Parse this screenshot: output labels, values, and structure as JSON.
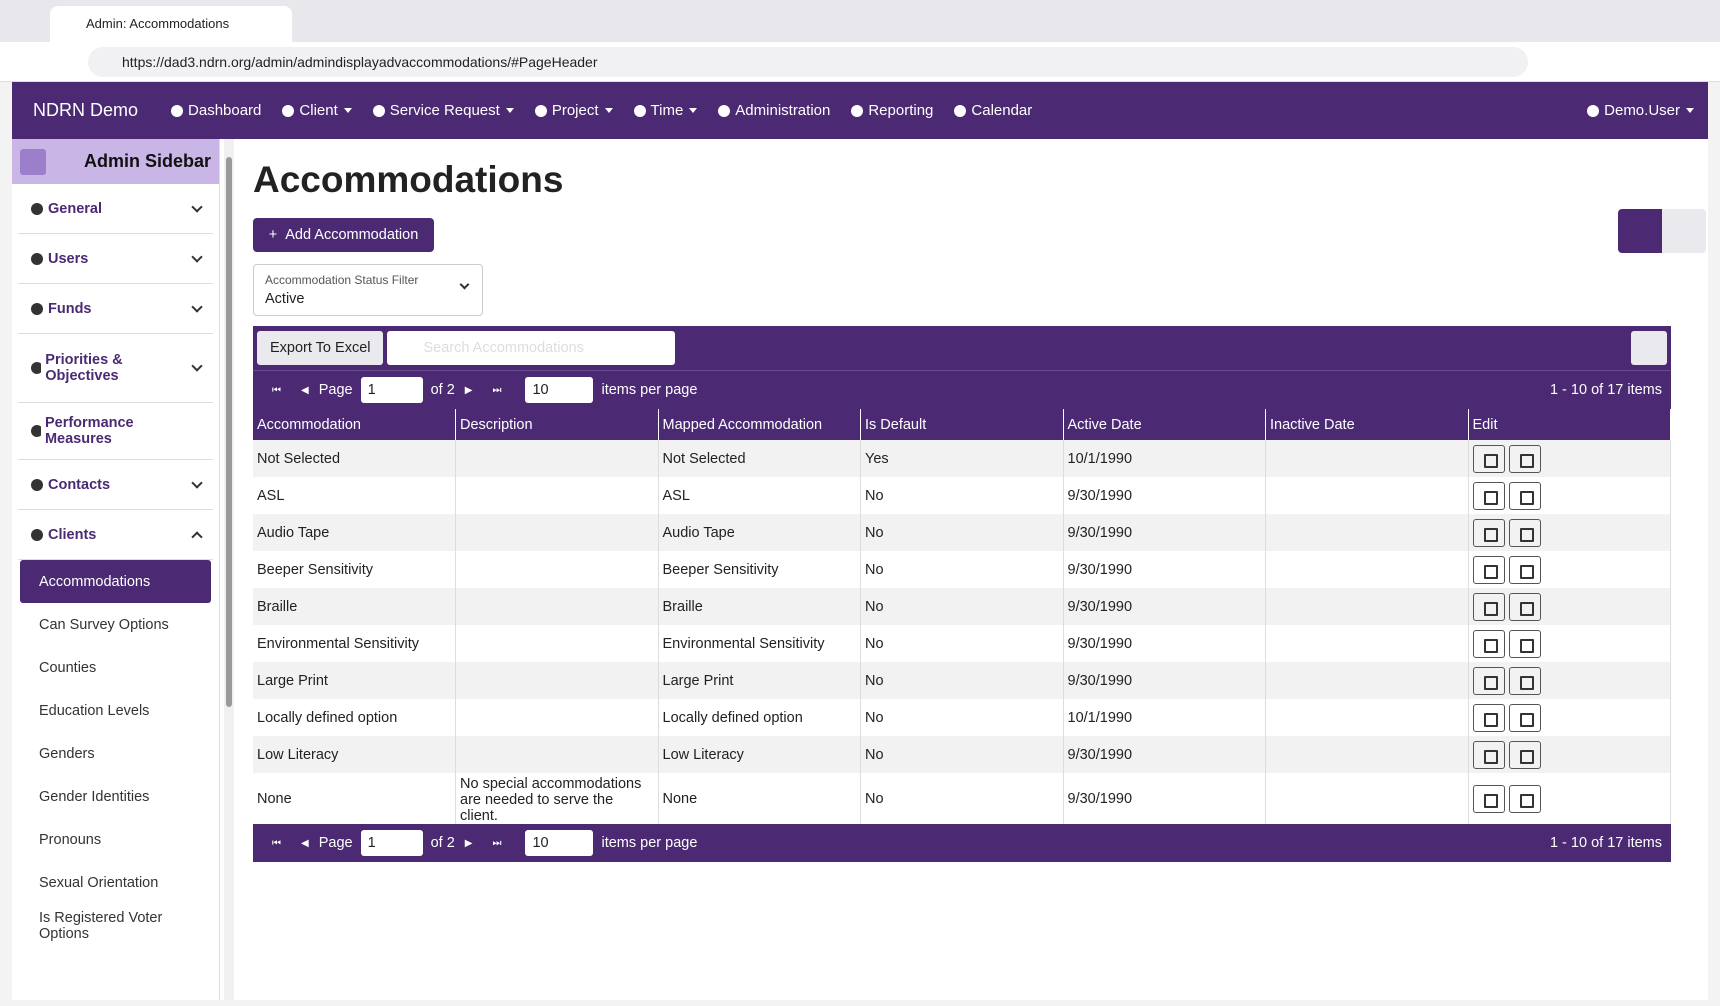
{
  "browser": {
    "tab_title": "Admin: Accommodations",
    "url": "https://dad3.ndrn.org/admin/admindisplayadvaccommodations/#PageHeader"
  },
  "nav": {
    "brand": "NDRN Demo",
    "items": [
      {
        "label": "Dashboard",
        "dropdown": false
      },
      {
        "label": "Client",
        "dropdown": true
      },
      {
        "label": "Service Request",
        "dropdown": true
      },
      {
        "label": "Project",
        "dropdown": true
      },
      {
        "label": "Time",
        "dropdown": true
      },
      {
        "label": "Administration",
        "dropdown": false
      },
      {
        "label": "Reporting",
        "dropdown": false
      },
      {
        "label": "Calendar",
        "dropdown": false
      }
    ],
    "user": "Demo.User"
  },
  "sidebar": {
    "title": "Admin Sidebar",
    "sections": [
      {
        "label": "General",
        "expanded": false
      },
      {
        "label": "Users",
        "expanded": false
      },
      {
        "label": "Funds",
        "expanded": false
      },
      {
        "label": "Priorities & Objectives",
        "expanded": false
      },
      {
        "label": "Performance Measures",
        "expanded": null
      },
      {
        "label": "Contacts",
        "expanded": false
      },
      {
        "label": "Clients",
        "expanded": true
      }
    ],
    "items": [
      "Accommodations",
      "Can Survey Options",
      "Counties",
      "Education Levels",
      "Genders",
      "Gender Identities",
      "Pronouns",
      "Sexual Orientation",
      "Is Registered Voter Options"
    ],
    "active_item": 0
  },
  "page": {
    "title": "Accommodations",
    "add_button": "Add Accommodation",
    "filter_label": "Accommodation Status Filter",
    "filter_value": "Active",
    "export_button": "Export To Excel",
    "search_placeholder": "Search Accommodations"
  },
  "pager": {
    "page_label": "Page",
    "page_value": "1",
    "of_label": "of 2",
    "per_page": "10",
    "per_page_label": "items per page",
    "summary": "1 - 10 of 17 items"
  },
  "table": {
    "columns": [
      "Accommodation",
      "Description",
      "Mapped Accommodation",
      "Is Default",
      "Active Date",
      "Inactive Date",
      "Edit"
    ],
    "rows": [
      [
        "Not Selected",
        null,
        "Not Selected",
        "Yes",
        "10/1/1990",
        null
      ],
      [
        "ASL",
        null,
        "ASL",
        "No",
        "9/30/1990",
        null
      ],
      [
        "Audio Tape",
        null,
        "Audio Tape",
        "No",
        "9/30/1990",
        null
      ],
      [
        "Beeper Sensitivity",
        null,
        "Beeper Sensitivity",
        "No",
        "9/30/1990",
        null
      ],
      [
        "Braille",
        null,
        "Braille",
        "No",
        "9/30/1990",
        null
      ],
      [
        "Environmental Sensitivity",
        null,
        "Environmental Sensitivity",
        "No",
        "9/30/1990",
        null
      ],
      [
        "Large Print",
        null,
        "Large Print",
        "No",
        "9/30/1990",
        null
      ],
      [
        "Locally defined option",
        null,
        "Locally defined option",
        "No",
        "10/1/1990",
        null
      ],
      [
        "Low Literacy",
        null,
        "Low Literacy",
        "No",
        "9/30/1990",
        null
      ],
      [
        "None",
        "No special accommodations are needed to serve the client.",
        "None",
        "No",
        "9/30/1990",
        null
      ]
    ]
  }
}
